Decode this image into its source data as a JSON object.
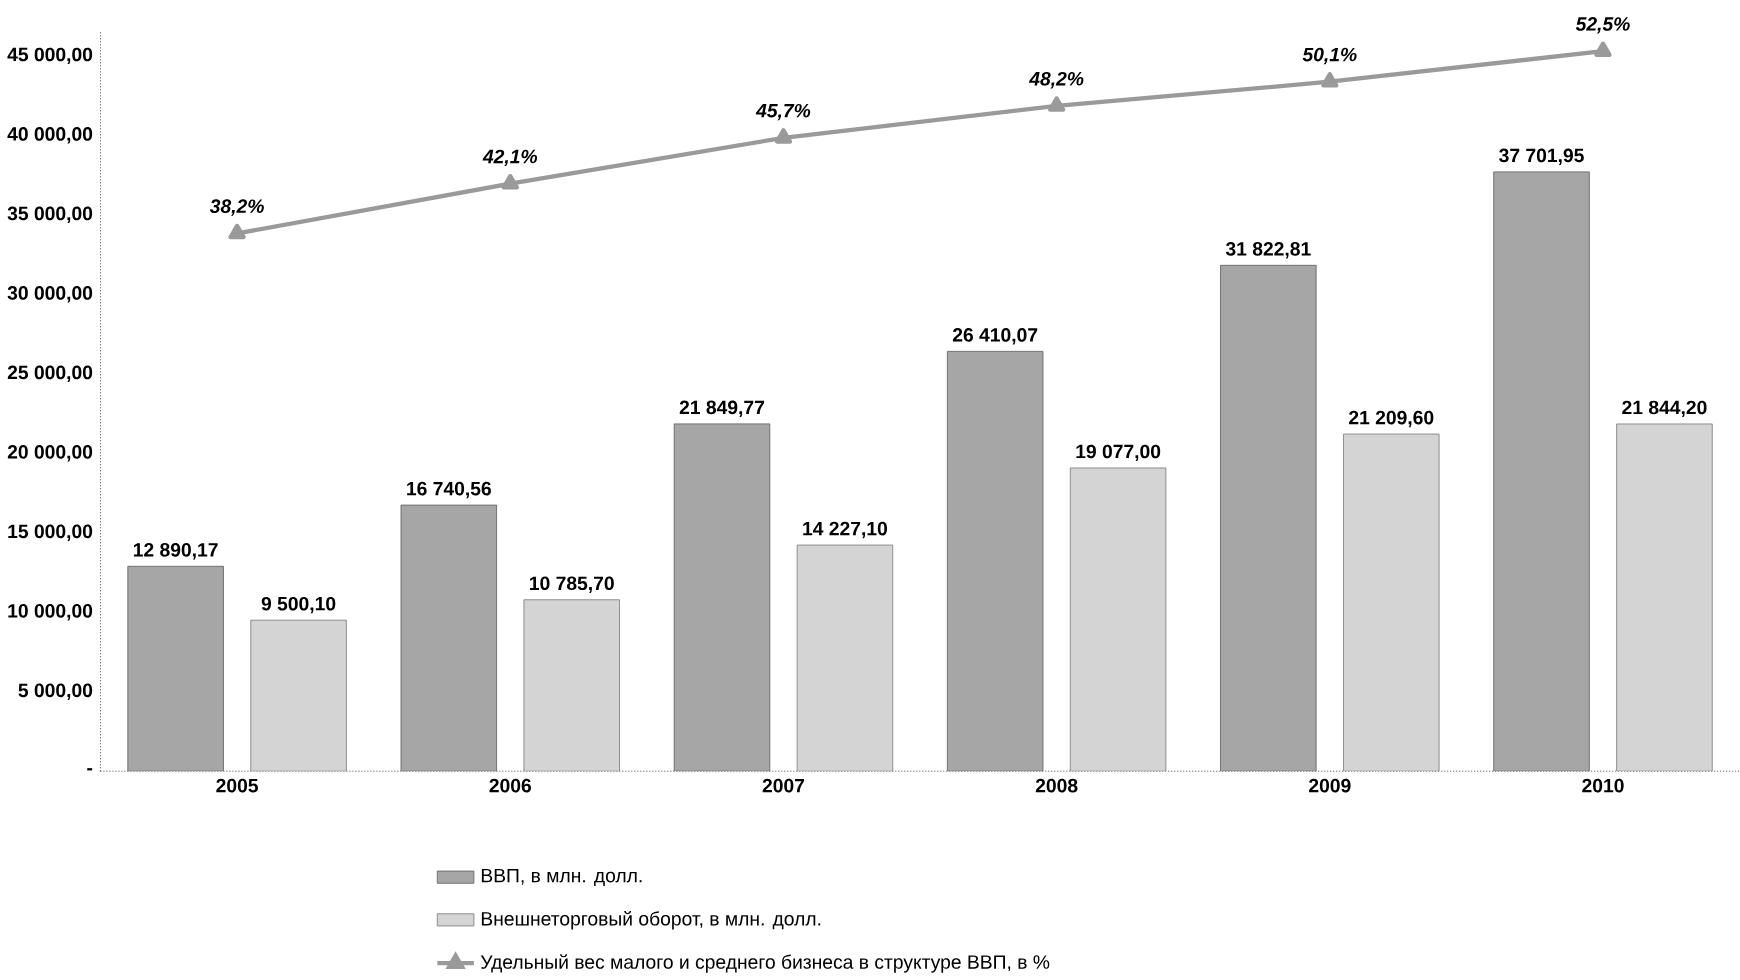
{
  "chart_data": {
    "type": "bar",
    "categories": [
      "2005",
      "2006",
      "2007",
      "2008",
      "2009",
      "2010"
    ],
    "series": [
      {
        "name": "ВВП, в млн. долл.",
        "color": "#a6a6a6",
        "values": [
          12890.17,
          16740.56,
          21849.77,
          26410.07,
          31822.81,
          37701.95
        ],
        "value_labels": [
          "12 890,17",
          "16 740,56",
          "21 849,77",
          "26 410,07",
          "31 822,81",
          "37 701,95"
        ]
      },
      {
        "name": "Внешнеторговый оборот, в млн. долл.",
        "color": "#d4d4d4",
        "values": [
          9500.1,
          10785.7,
          14227.1,
          19077.0,
          21209.6,
          21844.2
        ],
        "value_labels": [
          "9 500,10",
          "10 785,70",
          "14 227,10",
          "19 077,00",
          "21 209,60",
          "21 844,20"
        ]
      },
      {
        "name": "Удельный вес малого и среднего бизнеса в структуре ВВП, в %",
        "type": "line",
        "axis": "y2",
        "color": "#9a9a9a",
        "marker": "triangle",
        "values": [
          38.2,
          42.1,
          45.7,
          48.2,
          50.1,
          52.5
        ],
        "value_labels": [
          "38,2%",
          "42,1%",
          "45,7%",
          "48,2%",
          "50,1%",
          "52,5%"
        ]
      }
    ],
    "ylim": [
      0,
      46500
    ],
    "yticks": [
      {
        "value": 0,
        "label": "-"
      },
      {
        "value": 5000,
        "label": "5 000,00"
      },
      {
        "value": 10000,
        "label": "10 000,00"
      },
      {
        "value": 15000,
        "label": "15 000,00"
      },
      {
        "value": 20000,
        "label": "20 000,00"
      },
      {
        "value": 25000,
        "label": "25 000,00"
      },
      {
        "value": 30000,
        "label": "30 000,00"
      },
      {
        "value": 35000,
        "label": "35 000,00"
      },
      {
        "value": 40000,
        "label": "40 000,00"
      },
      {
        "value": 45000,
        "label": "45 000,00"
      }
    ],
    "y2lim": [
      -4,
      54
    ],
    "legend": "bottom"
  }
}
